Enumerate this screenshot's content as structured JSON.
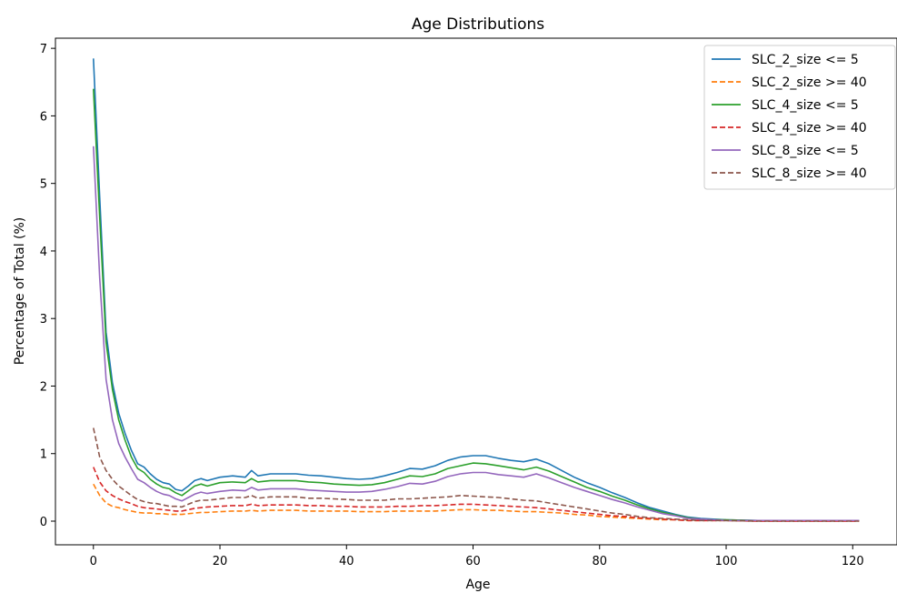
{
  "chart_data": {
    "type": "line",
    "title": "Age Distributions",
    "xlabel": "Age",
    "ylabel": "Percentage of Total (%)",
    "xlim": [
      -6,
      127
    ],
    "ylim": [
      -0.35,
      7.15
    ],
    "xticks": [
      0,
      20,
      40,
      60,
      80,
      100,
      120
    ],
    "yticks": [
      0,
      1,
      2,
      3,
      4,
      5,
      6,
      7
    ],
    "grid": false,
    "legend_position": "top-right",
    "keypoints_x": [
      0,
      1,
      2,
      3,
      4,
      5,
      6,
      7,
      8,
      9,
      10,
      11,
      12,
      13,
      14,
      15,
      16,
      17,
      18,
      20,
      22,
      24,
      25,
      26,
      28,
      30,
      32,
      34,
      36,
      38,
      40,
      42,
      44,
      46,
      48,
      50,
      52,
      54,
      56,
      58,
      60,
      62,
      64,
      66,
      68,
      70,
      72,
      74,
      76,
      78,
      80,
      82,
      84,
      86,
      88,
      90,
      92,
      94,
      96,
      98,
      100,
      105,
      110,
      115,
      121
    ],
    "series": [
      {
        "name": "SLC_2_size <= 5",
        "color": "#1f77b4",
        "dash": "solid",
        "values": [
          6.85,
          4.8,
          2.8,
          2.05,
          1.6,
          1.3,
          1.05,
          0.85,
          0.8,
          0.7,
          0.62,
          0.57,
          0.55,
          0.47,
          0.45,
          0.52,
          0.6,
          0.63,
          0.6,
          0.65,
          0.67,
          0.65,
          0.75,
          0.67,
          0.7,
          0.7,
          0.7,
          0.68,
          0.67,
          0.65,
          0.63,
          0.62,
          0.63,
          0.67,
          0.72,
          0.78,
          0.77,
          0.82,
          0.9,
          0.95,
          0.97,
          0.97,
          0.93,
          0.9,
          0.88,
          0.92,
          0.85,
          0.75,
          0.65,
          0.57,
          0.5,
          0.42,
          0.35,
          0.27,
          0.2,
          0.15,
          0.1,
          0.06,
          0.04,
          0.03,
          0.02,
          0.01,
          0.01,
          0.01,
          0.01
        ]
      },
      {
        "name": "SLC_2_size >= 40",
        "color": "#ff7f0e",
        "dash": "dashed",
        "values": [
          0.55,
          0.38,
          0.27,
          0.22,
          0.2,
          0.17,
          0.15,
          0.13,
          0.12,
          0.12,
          0.11,
          0.11,
          0.1,
          0.1,
          0.1,
          0.11,
          0.12,
          0.13,
          0.13,
          0.14,
          0.15,
          0.15,
          0.16,
          0.15,
          0.16,
          0.16,
          0.16,
          0.15,
          0.15,
          0.15,
          0.15,
          0.14,
          0.14,
          0.14,
          0.15,
          0.15,
          0.15,
          0.15,
          0.16,
          0.17,
          0.17,
          0.16,
          0.16,
          0.15,
          0.14,
          0.14,
          0.13,
          0.12,
          0.1,
          0.09,
          0.07,
          0.06,
          0.05,
          0.04,
          0.03,
          0.02,
          0.02,
          0.01,
          0.01,
          0.01,
          0.01,
          0.0,
          0.0,
          0.0,
          0.0
        ]
      },
      {
        "name": "SLC_4_size <= 5",
        "color": "#2ca02c",
        "dash": "solid",
        "values": [
          6.4,
          4.5,
          2.65,
          1.95,
          1.5,
          1.2,
          0.95,
          0.78,
          0.72,
          0.62,
          0.55,
          0.5,
          0.48,
          0.42,
          0.38,
          0.45,
          0.52,
          0.55,
          0.52,
          0.57,
          0.58,
          0.57,
          0.63,
          0.58,
          0.6,
          0.6,
          0.6,
          0.58,
          0.57,
          0.55,
          0.54,
          0.53,
          0.54,
          0.57,
          0.62,
          0.67,
          0.66,
          0.7,
          0.78,
          0.82,
          0.86,
          0.85,
          0.82,
          0.79,
          0.76,
          0.8,
          0.74,
          0.66,
          0.58,
          0.5,
          0.44,
          0.37,
          0.31,
          0.24,
          0.18,
          0.13,
          0.09,
          0.05,
          0.03,
          0.02,
          0.02,
          0.01,
          0.01,
          0.01,
          0.01
        ]
      },
      {
        "name": "SLC_4_size >= 40",
        "color": "#d62728",
        "dash": "dashed",
        "values": [
          0.8,
          0.58,
          0.45,
          0.38,
          0.33,
          0.29,
          0.26,
          0.22,
          0.2,
          0.19,
          0.18,
          0.17,
          0.16,
          0.15,
          0.15,
          0.17,
          0.19,
          0.2,
          0.21,
          0.22,
          0.23,
          0.23,
          0.25,
          0.23,
          0.24,
          0.24,
          0.24,
          0.23,
          0.23,
          0.22,
          0.22,
          0.21,
          0.21,
          0.21,
          0.22,
          0.22,
          0.23,
          0.23,
          0.24,
          0.25,
          0.25,
          0.24,
          0.23,
          0.22,
          0.21,
          0.2,
          0.18,
          0.16,
          0.14,
          0.12,
          0.1,
          0.08,
          0.07,
          0.05,
          0.04,
          0.03,
          0.02,
          0.01,
          0.01,
          0.01,
          0.01,
          0.0,
          0.0,
          0.0,
          0.0
        ]
      },
      {
        "name": "SLC_8_size <= 5",
        "color": "#9467bd",
        "dash": "solid",
        "values": [
          5.55,
          3.6,
          2.1,
          1.5,
          1.15,
          0.95,
          0.78,
          0.62,
          0.57,
          0.5,
          0.44,
          0.4,
          0.38,
          0.33,
          0.3,
          0.35,
          0.4,
          0.43,
          0.41,
          0.44,
          0.46,
          0.45,
          0.5,
          0.46,
          0.48,
          0.48,
          0.48,
          0.46,
          0.45,
          0.44,
          0.43,
          0.43,
          0.44,
          0.47,
          0.51,
          0.56,
          0.55,
          0.59,
          0.66,
          0.7,
          0.72,
          0.72,
          0.69,
          0.67,
          0.65,
          0.7,
          0.64,
          0.57,
          0.5,
          0.44,
          0.38,
          0.32,
          0.27,
          0.21,
          0.16,
          0.11,
          0.08,
          0.04,
          0.03,
          0.02,
          0.01,
          0.01,
          0.01,
          0.01,
          0.01
        ]
      },
      {
        "name": "SLC_8_size >= 40",
        "color": "#8c564b",
        "dash": "dashed",
        "values": [
          1.38,
          0.95,
          0.75,
          0.62,
          0.52,
          0.45,
          0.38,
          0.32,
          0.29,
          0.27,
          0.26,
          0.24,
          0.22,
          0.22,
          0.21,
          0.25,
          0.29,
          0.31,
          0.31,
          0.33,
          0.35,
          0.35,
          0.38,
          0.34,
          0.36,
          0.36,
          0.36,
          0.34,
          0.34,
          0.33,
          0.32,
          0.31,
          0.31,
          0.31,
          0.33,
          0.33,
          0.34,
          0.35,
          0.36,
          0.38,
          0.37,
          0.36,
          0.35,
          0.33,
          0.31,
          0.3,
          0.27,
          0.24,
          0.21,
          0.18,
          0.15,
          0.12,
          0.1,
          0.07,
          0.05,
          0.04,
          0.03,
          0.02,
          0.01,
          0.01,
          0.01,
          0.0,
          0.0,
          0.0,
          0.0
        ]
      }
    ]
  }
}
